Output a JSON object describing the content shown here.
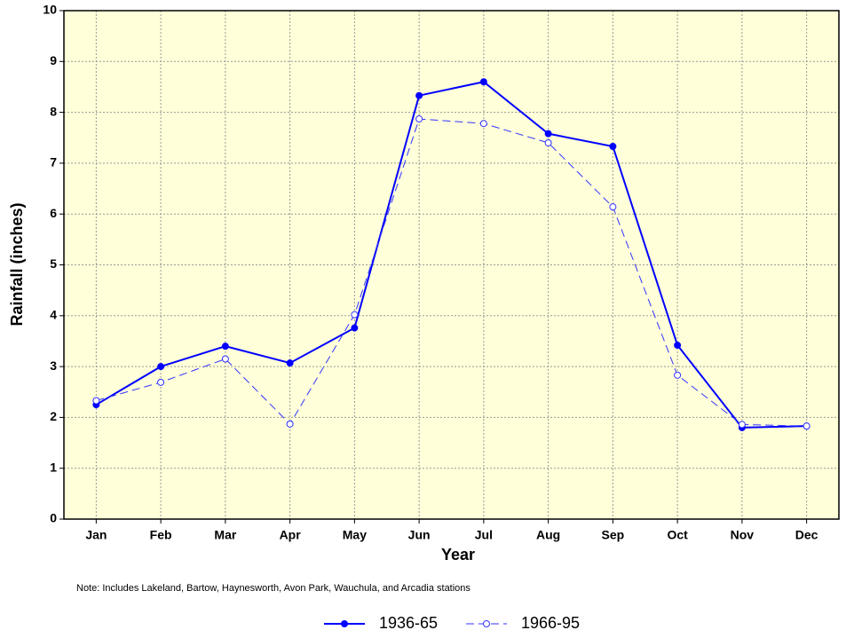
{
  "chart_data": {
    "type": "line",
    "x_label": "Year",
    "y_label": "Rainfall  (inches)",
    "note": "Note: Includes Lakeland, Bartow, Haynesworth, Avon Park, Wauchula, and Arcadia stations",
    "categories": [
      "Jan",
      "Feb",
      "Mar",
      "Apr",
      "May",
      "Jun",
      "Jul",
      "Aug",
      "Sep",
      "Oct",
      "Nov",
      "Dec"
    ],
    "series": [
      {
        "name": "1936-65",
        "color": "#0000ff",
        "dashed": false,
        "filled": true,
        "values": [
          2.25,
          3.0,
          3.4,
          3.07,
          3.76,
          8.33,
          8.6,
          7.58,
          7.33,
          3.42,
          1.8,
          1.83
        ]
      },
      {
        "name": "1966-95",
        "color": "#3333ff",
        "dashed": true,
        "filled": false,
        "values": [
          2.33,
          2.69,
          3.15,
          1.87,
          4.02,
          7.87,
          7.78,
          7.4,
          6.14,
          2.83,
          1.86,
          1.83
        ]
      }
    ],
    "ylim": [
      0,
      10
    ],
    "yticks": [
      0,
      1,
      2,
      3,
      4,
      5,
      6,
      7,
      8,
      9,
      10
    ],
    "grid": true
  }
}
